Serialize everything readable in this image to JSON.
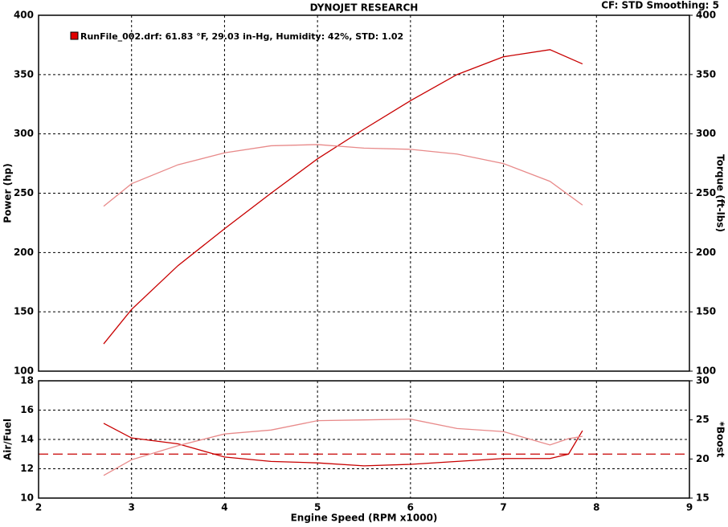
{
  "chart_data": [
    {
      "type": "line",
      "title": "DYNOJET RESEARCH",
      "note": "CF: STD  Smoothing: 5",
      "legend": "RunFile_002.drf: 61.83 °F, 29.03 in-Hg, Humidity: 42%, STD: 1.02",
      "ylabel": "Power (hp)",
      "y2label": "Torque (ft-lbs)",
      "x": [
        2.7,
        3,
        3.5,
        4,
        4.5,
        5,
        5.5,
        6,
        6.5,
        7,
        7.5,
        7.85
      ],
      "series": [
        {
          "color": "#c80000",
          "values": [
            123,
            152,
            189,
            220,
            250,
            279,
            304,
            328,
            350,
            365,
            371,
            359
          ]
        },
        {
          "color": "#e88a8a",
          "axis": "y2",
          "values": [
            239,
            258,
            274,
            284,
            290,
            291,
            288,
            287,
            283,
            275,
            260,
            240
          ]
        }
      ],
      "xlim": [
        2,
        9
      ],
      "xticks": [
        2,
        3,
        4,
        5,
        6,
        7,
        8,
        9
      ],
      "ylim": [
        100,
        400
      ],
      "yticks": [
        100,
        150,
        200,
        250,
        300,
        350,
        400
      ],
      "y2lim": [
        100,
        400
      ],
      "y2ticks": [
        100,
        150,
        200,
        250,
        300,
        350,
        400
      ],
      "grid": true
    },
    {
      "type": "line",
      "xlabel": "Engine Speed (RPM x1000)",
      "ylabel": "Air/Fuel",
      "y2label": "*Boost",
      "x": [
        2.7,
        3,
        3.5,
        4,
        4.5,
        5,
        5.5,
        6,
        6.5,
        7,
        7.5,
        7.7,
        7.85
      ],
      "series": [
        {
          "color": "#c80000",
          "values": [
            15.1,
            14.1,
            13.7,
            12.8,
            12.5,
            12.4,
            12.2,
            12.3,
            12.5,
            12.7,
            12.7,
            13.0,
            14.6
          ]
        },
        {
          "color": "#e88a8a",
          "axis": "y2",
          "values": [
            17.9,
            19.9,
            21.7,
            23.2,
            23.7,
            24.9,
            25.0,
            25.1,
            23.9,
            23.5,
            21.8,
            22.6,
            22.9
          ]
        }
      ],
      "reference": 13,
      "reference_color": "#c80000",
      "xlim": [
        2,
        9
      ],
      "xticks": [
        2,
        3,
        4,
        5,
        6,
        7,
        8,
        9
      ],
      "ylim": [
        10,
        18
      ],
      "yticks": [
        10,
        12,
        14,
        16,
        18
      ],
      "y2lim": [
        15,
        30
      ],
      "y2ticks": [
        15,
        20,
        25,
        30
      ],
      "grid": true
    }
  ]
}
